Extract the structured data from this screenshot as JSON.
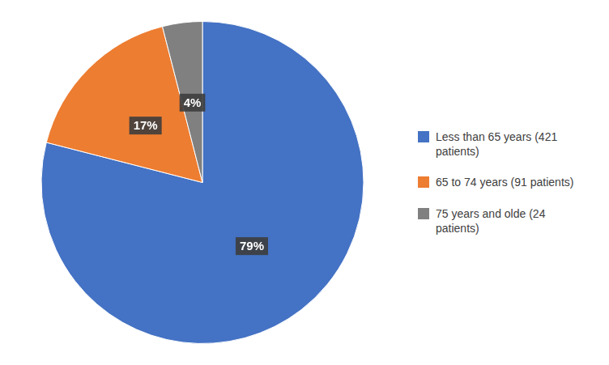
{
  "chart_data": {
    "type": "pie",
    "categories": [
      "Less than 65 years (421\npatients)",
      "65 to 74 years (91 patients)",
      "75 years and olde (24\npatients)"
    ],
    "values": [
      79,
      17,
      4
    ],
    "value_labels": [
      "79%",
      "17%",
      "4%"
    ],
    "colors": [
      "#4472C4",
      "#ED7D31",
      "#808080"
    ],
    "data_labels": true,
    "legend": "right"
  }
}
